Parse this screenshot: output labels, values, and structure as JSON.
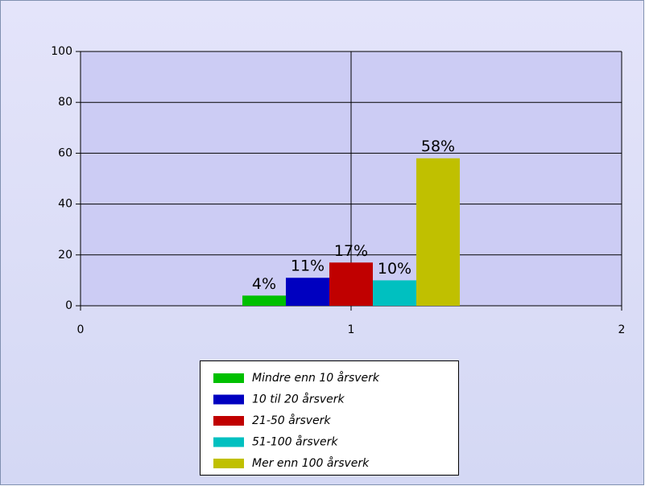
{
  "chart_data": {
    "type": "bar",
    "x": [
      1
    ],
    "xlim": [
      0,
      2
    ],
    "xticks": [
      0,
      1,
      2
    ],
    "ylim": [
      0,
      100
    ],
    "yticks": [
      0,
      20,
      40,
      60,
      80,
      100
    ],
    "grid": true,
    "series": [
      {
        "name": "Mindre enn 10 årsverk",
        "color": "#00c000",
        "values": [
          4
        ],
        "value_labels": [
          "4%"
        ]
      },
      {
        "name": "10 til 20 årsverk",
        "color": "#0000c0",
        "values": [
          11
        ],
        "value_labels": [
          "11%"
        ]
      },
      {
        "name": "21-50 årsverk",
        "color": "#c00000",
        "values": [
          17
        ],
        "value_labels": [
          "17%"
        ]
      },
      {
        "name": "51-100 årsverk",
        "color": "#00c0c0",
        "values": [
          10
        ],
        "value_labels": [
          "10%"
        ]
      },
      {
        "name": "Mer enn 100 årsverk",
        "color": "#c0c000",
        "values": [
          58
        ],
        "value_labels": [
          "58%"
        ]
      }
    ]
  }
}
